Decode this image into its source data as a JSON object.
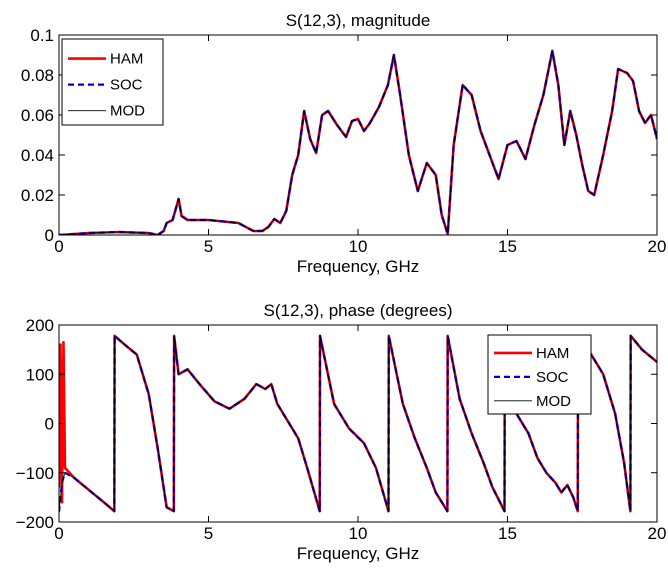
{
  "chart_data": [
    {
      "type": "line",
      "title": "S(12,3), magnitude",
      "xlabel": "Frequency, GHz",
      "ylabel": "",
      "xlim": [
        0,
        20
      ],
      "ylim": [
        0,
        0.1
      ],
      "xticks": [
        "0",
        "5",
        "10",
        "15",
        "20"
      ],
      "yticks": [
        "0",
        "0.02",
        "0.04",
        "0.06",
        "0.08",
        "0.1"
      ],
      "legend_position": "top-left",
      "grid": false,
      "series": [
        {
          "name": "HAM",
          "color": "#ff0000",
          "style": "solid",
          "x": [
            0,
            1,
            2,
            3,
            3.3,
            3.5,
            3.6,
            3.8,
            4.0,
            4.1,
            4.3,
            5,
            6,
            6.5,
            6.8,
            7.0,
            7.2,
            7.4,
            7.6,
            7.8,
            8.0,
            8.2,
            8.4,
            8.6,
            8.8,
            9.0,
            9.3,
            9.6,
            9.8,
            10.0,
            10.2,
            10.4,
            10.7,
            11.0,
            11.2,
            11.4,
            11.7,
            12.0,
            12.3,
            12.6,
            12.8,
            13.0,
            13.2,
            13.5,
            13.8,
            14.1,
            14.4,
            14.7,
            15.0,
            15.3,
            15.6,
            15.9,
            16.2,
            16.5,
            16.7,
            16.9,
            17.1,
            17.3,
            17.5,
            17.7,
            17.9,
            18.2,
            18.5,
            18.7,
            19.0,
            19.2,
            19.4,
            19.6,
            19.8,
            20.0
          ],
          "y": [
            0,
            0.001,
            0.0015,
            0.001,
            0,
            0.002,
            0.006,
            0.0075,
            0.018,
            0.0095,
            0.0075,
            0.0075,
            0.006,
            0.002,
            0.002,
            0.004,
            0.008,
            0.006,
            0.012,
            0.03,
            0.04,
            0.062,
            0.048,
            0.041,
            0.06,
            0.062,
            0.055,
            0.049,
            0.057,
            0.058,
            0.052,
            0.056,
            0.064,
            0.075,
            0.09,
            0.071,
            0.04,
            0.022,
            0.036,
            0.03,
            0.01,
            0.0005,
            0.045,
            0.075,
            0.07,
            0.052,
            0.04,
            0.028,
            0.045,
            0.047,
            0.038,
            0.055,
            0.07,
            0.092,
            0.075,
            0.045,
            0.062,
            0.05,
            0.035,
            0.022,
            0.02,
            0.04,
            0.062,
            0.083,
            0.081,
            0.077,
            0.062,
            0.056,
            0.06,
            0.048
          ]
        },
        {
          "name": "SOC",
          "color": "#0000cc",
          "style": "dashed",
          "x": [
            0,
            1,
            2,
            3,
            3.3,
            3.5,
            3.6,
            3.8,
            4.0,
            4.1,
            4.3,
            5,
            6,
            6.5,
            6.8,
            7.0,
            7.2,
            7.4,
            7.6,
            7.8,
            8.0,
            8.2,
            8.4,
            8.6,
            8.8,
            9.0,
            9.3,
            9.6,
            9.8,
            10.0,
            10.2,
            10.4,
            10.7,
            11.0,
            11.2,
            11.4,
            11.7,
            12.0,
            12.3,
            12.6,
            12.8,
            13.0,
            13.2,
            13.5,
            13.8,
            14.1,
            14.4,
            14.7,
            15.0,
            15.3,
            15.6,
            15.9,
            16.2,
            16.5,
            16.7,
            16.9,
            17.1,
            17.3,
            17.5,
            17.7,
            17.9,
            18.2,
            18.5,
            18.7,
            19.0,
            19.2,
            19.4,
            19.6,
            19.8,
            20.0
          ],
          "y": [
            0,
            0.001,
            0.0015,
            0.001,
            0,
            0.002,
            0.006,
            0.0075,
            0.018,
            0.0095,
            0.0075,
            0.0075,
            0.006,
            0.002,
            0.002,
            0.004,
            0.008,
            0.006,
            0.012,
            0.03,
            0.04,
            0.062,
            0.048,
            0.041,
            0.06,
            0.062,
            0.055,
            0.049,
            0.057,
            0.058,
            0.052,
            0.056,
            0.064,
            0.075,
            0.09,
            0.071,
            0.04,
            0.022,
            0.036,
            0.03,
            0.01,
            0.0005,
            0.045,
            0.075,
            0.07,
            0.052,
            0.04,
            0.028,
            0.045,
            0.047,
            0.038,
            0.055,
            0.07,
            0.092,
            0.075,
            0.045,
            0.062,
            0.05,
            0.035,
            0.022,
            0.02,
            0.04,
            0.062,
            0.083,
            0.081,
            0.077,
            0.062,
            0.056,
            0.06,
            0.048
          ]
        },
        {
          "name": "MOD",
          "color": "#000000",
          "style": "thin",
          "x": [
            0,
            1,
            2,
            3,
            3.3,
            3.5,
            3.6,
            3.8,
            4.0,
            4.1,
            4.3,
            5,
            6,
            6.5,
            6.8,
            7.0,
            7.2,
            7.4,
            7.6,
            7.8,
            8.0,
            8.2,
            8.4,
            8.6,
            8.8,
            9.0,
            9.3,
            9.6,
            9.8,
            10.0,
            10.2,
            10.4,
            10.7,
            11.0,
            11.2,
            11.4,
            11.7,
            12.0,
            12.3,
            12.6,
            12.8,
            13.0,
            13.2,
            13.5,
            13.8,
            14.1,
            14.4,
            14.7,
            15.0,
            15.3,
            15.6,
            15.9,
            16.2,
            16.5,
            16.7,
            16.9,
            17.1,
            17.3,
            17.5,
            17.7,
            17.9,
            18.2,
            18.5,
            18.7,
            19.0,
            19.2,
            19.4,
            19.6,
            19.8,
            20.0
          ],
          "y": [
            0,
            0.001,
            0.0015,
            0.001,
            0,
            0.002,
            0.006,
            0.0075,
            0.018,
            0.0095,
            0.0075,
            0.0075,
            0.006,
            0.002,
            0.002,
            0.004,
            0.008,
            0.006,
            0.012,
            0.03,
            0.04,
            0.062,
            0.048,
            0.041,
            0.06,
            0.062,
            0.055,
            0.049,
            0.057,
            0.058,
            0.052,
            0.056,
            0.064,
            0.075,
            0.09,
            0.071,
            0.04,
            0.022,
            0.036,
            0.03,
            0.01,
            0.0005,
            0.045,
            0.075,
            0.07,
            0.052,
            0.04,
            0.028,
            0.045,
            0.047,
            0.038,
            0.055,
            0.07,
            0.092,
            0.075,
            0.045,
            0.062,
            0.05,
            0.035,
            0.022,
            0.02,
            0.04,
            0.062,
            0.083,
            0.081,
            0.077,
            0.062,
            0.056,
            0.06,
            0.048
          ]
        }
      ]
    },
    {
      "type": "line",
      "title": "S(12,3), phase (degrees)",
      "xlabel": "Frequency, GHz",
      "ylabel": "",
      "xlim": [
        0,
        20
      ],
      "ylim": [
        -200,
        200
      ],
      "xticks": [
        "0",
        "5",
        "10",
        "15",
        "20"
      ],
      "yticks": [
        "−200",
        "−100",
        "0",
        "100",
        "200"
      ],
      "legend_position": "top-right",
      "grid": false,
      "series": [
        {
          "name": "HAM",
          "color": "#ff0000",
          "style": "solid",
          "x": [
            0,
            0.05,
            0.1,
            0.15,
            0.2,
            0.5,
            1.0,
            1.5,
            1.85,
            1.86,
            2.2,
            2.6,
            3.0,
            3.3,
            3.6,
            3.84,
            3.85,
            4.0,
            4.3,
            4.7,
            5.2,
            5.7,
            6.2,
            6.6,
            6.9,
            7.1,
            7.3,
            7.5,
            7.7,
            8.0,
            8.3,
            8.72,
            8.73,
            9.2,
            9.7,
            10.2,
            10.6,
            11.02,
            11.03,
            11.5,
            11.9,
            12.3,
            12.6,
            12.99,
            13.0,
            13.4,
            13.8,
            14.2,
            14.5,
            14.9,
            14.91,
            15.3,
            15.7,
            16.0,
            16.3,
            16.6,
            16.8,
            17.0,
            17.2,
            17.35,
            17.36,
            17.8,
            18.2,
            18.6,
            18.9,
            19.11,
            19.12,
            19.5,
            20.0
          ],
          "y": [
            -130,
            160,
            -160,
            165,
            -90,
            -110,
            -135,
            -160,
            -178,
            178,
            160,
            140,
            60,
            -50,
            -170,
            -178,
            178,
            100,
            110,
            80,
            45,
            30,
            50,
            80,
            70,
            80,
            40,
            20,
            0,
            -30,
            -90,
            -178,
            178,
            40,
            -10,
            -40,
            -90,
            -178,
            178,
            40,
            -30,
            -90,
            -140,
            -178,
            178,
            50,
            -20,
            -80,
            -130,
            -178,
            178,
            20,
            -20,
            -70,
            -100,
            -120,
            -140,
            -125,
            -150,
            -178,
            178,
            140,
            100,
            20,
            -80,
            -178,
            178,
            150,
            125
          ]
        },
        {
          "name": "SOC",
          "color": "#0000cc",
          "style": "dashed",
          "x": [
            0,
            0.1,
            0.2,
            0.5,
            1.0,
            1.5,
            1.85,
            1.86,
            2.2,
            2.6,
            3.0,
            3.3,
            3.6,
            3.84,
            3.85,
            4.0,
            4.3,
            4.7,
            5.2,
            5.7,
            6.2,
            6.6,
            6.9,
            7.1,
            7.3,
            7.5,
            7.7,
            8.0,
            8.3,
            8.72,
            8.73,
            9.2,
            9.7,
            10.2,
            10.6,
            11.02,
            11.03,
            11.5,
            11.9,
            12.3,
            12.6,
            12.99,
            13.0,
            13.4,
            13.8,
            14.2,
            14.5,
            14.9,
            14.91,
            15.3,
            15.7,
            16.0,
            16.3,
            16.6,
            16.8,
            17.0,
            17.2,
            17.35,
            17.36,
            17.8,
            18.2,
            18.6,
            18.9,
            19.11,
            19.12,
            19.5,
            20.0
          ],
          "y": [
            -180,
            -120,
            -100,
            -110,
            -135,
            -160,
            -178,
            178,
            160,
            140,
            60,
            -50,
            -170,
            -178,
            178,
            100,
            110,
            80,
            45,
            30,
            50,
            80,
            70,
            80,
            40,
            20,
            0,
            -30,
            -90,
            -178,
            178,
            40,
            -10,
            -40,
            -90,
            -178,
            178,
            40,
            -30,
            -90,
            -140,
            -178,
            178,
            50,
            -20,
            -80,
            -130,
            -178,
            178,
            20,
            -20,
            -70,
            -100,
            -120,
            -140,
            -125,
            -150,
            -178,
            178,
            140,
            100,
            20,
            -80,
            -178,
            178,
            150,
            125
          ]
        },
        {
          "name": "MOD",
          "color": "#000000",
          "style": "thin",
          "x": [
            0,
            0.1,
            0.2,
            0.5,
            1.0,
            1.5,
            1.85,
            1.86,
            2.2,
            2.6,
            3.0,
            3.3,
            3.6,
            3.84,
            3.85,
            4.0,
            4.3,
            4.7,
            5.2,
            5.7,
            6.2,
            6.6,
            6.9,
            7.1,
            7.3,
            7.5,
            7.7,
            8.0,
            8.3,
            8.72,
            8.73,
            9.2,
            9.7,
            10.2,
            10.6,
            11.02,
            11.03,
            11.5,
            11.9,
            12.3,
            12.6,
            12.99,
            13.0,
            13.4,
            13.8,
            14.2,
            14.5,
            14.9,
            14.91,
            15.3,
            15.7,
            16.0,
            16.3,
            16.6,
            16.8,
            17.0,
            17.2,
            17.35,
            17.36,
            17.8,
            18.2,
            18.6,
            18.9,
            19.11,
            19.12,
            19.5,
            20.0
          ],
          "y": [
            -180,
            -120,
            -100,
            -110,
            -135,
            -160,
            -178,
            178,
            160,
            140,
            60,
            -50,
            -170,
            -178,
            178,
            100,
            110,
            80,
            45,
            30,
            50,
            80,
            70,
            80,
            40,
            20,
            0,
            -30,
            -90,
            -178,
            178,
            40,
            -10,
            -40,
            -90,
            -178,
            178,
            40,
            -30,
            -90,
            -140,
            -178,
            178,
            50,
            -20,
            -80,
            -130,
            -178,
            178,
            20,
            -20,
            -70,
            -100,
            -120,
            -140,
            -125,
            -150,
            -178,
            178,
            140,
            100,
            20,
            -80,
            -178,
            178,
            150,
            125
          ]
        }
      ]
    }
  ]
}
